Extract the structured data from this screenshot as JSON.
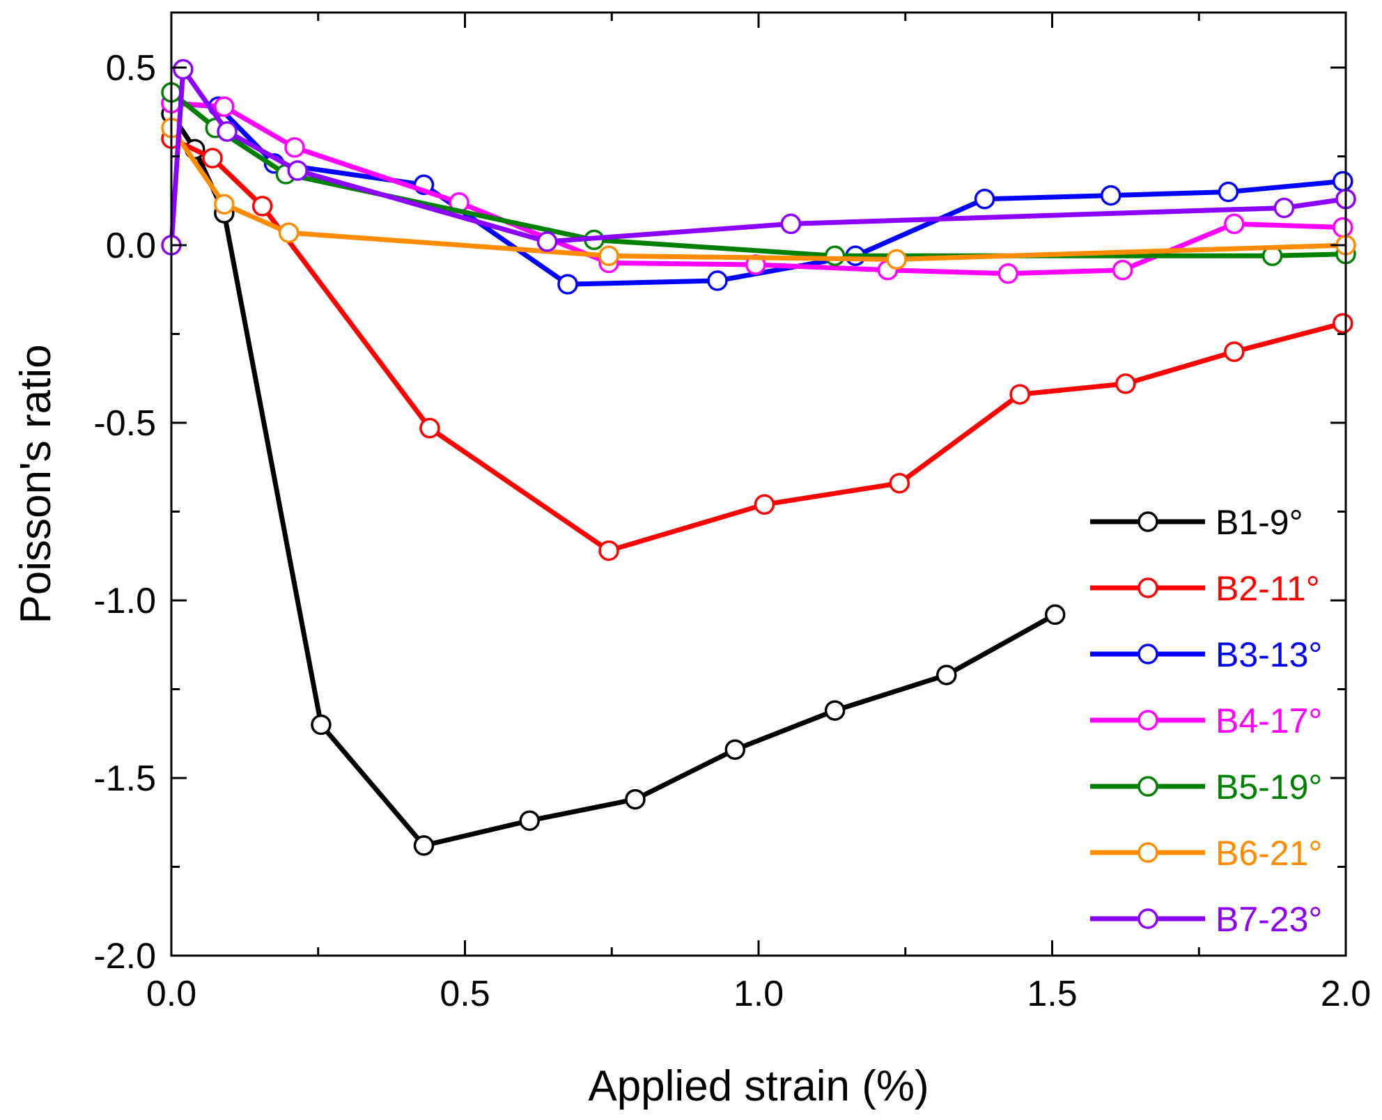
{
  "chart_data": {
    "type": "line",
    "title": "",
    "xlabel": "Applied strain (%)",
    "ylabel": "Poisson's ratio",
    "xlim": [
      0.0,
      2.0
    ],
    "ylim": [
      -2.0,
      0.65
    ],
    "x_ticks": [
      0.0,
      0.5,
      1.0,
      1.5,
      2.0
    ],
    "x_tick_labels": [
      "0.0",
      "0.5",
      "1.0",
      "1.5",
      "2.0"
    ],
    "y_ticks": [
      0.5,
      0.0,
      -0.5,
      -1.0,
      -1.5,
      -2.0
    ],
    "y_tick_labels": [
      "0.5",
      "0.0",
      "-0.5",
      "-1.0",
      "-1.5",
      "-2.0"
    ],
    "grid": false,
    "legend_position": "bottom-right",
    "series": [
      {
        "name": "B1-9°",
        "color": "#000000",
        "points": [
          [
            0.0,
            0.37
          ],
          [
            0.04,
            0.27
          ],
          [
            0.09,
            0.09
          ],
          [
            0.255,
            -1.35
          ],
          [
            0.43,
            -1.69
          ],
          [
            0.61,
            -1.62
          ],
          [
            0.79,
            -1.56
          ],
          [
            0.96,
            -1.42
          ],
          [
            1.13,
            -1.31
          ],
          [
            1.32,
            -1.21
          ],
          [
            1.505,
            -1.04
          ]
        ]
      },
      {
        "name": "B2-11°",
        "color": "#ff0000",
        "points": [
          [
            0.0,
            0.3
          ],
          [
            0.07,
            0.245
          ],
          [
            0.155,
            0.11
          ],
          [
            0.44,
            -0.515
          ],
          [
            0.745,
            -0.86
          ],
          [
            1.01,
            -0.73
          ],
          [
            1.24,
            -0.67
          ],
          [
            1.445,
            -0.42
          ],
          [
            1.625,
            -0.39
          ],
          [
            1.81,
            -0.3
          ],
          [
            1.995,
            -0.22
          ]
        ]
      },
      {
        "name": "B3-13°",
        "color": "#0000ff",
        "points": [
          [
            0.0,
            0.4
          ],
          [
            0.08,
            0.39
          ],
          [
            0.175,
            0.23
          ],
          [
            0.43,
            0.17
          ],
          [
            0.675,
            -0.11
          ],
          [
            0.93,
            -0.1
          ],
          [
            1.165,
            -0.03
          ],
          [
            1.385,
            0.13
          ],
          [
            1.6,
            0.14
          ],
          [
            1.8,
            0.15
          ],
          [
            1.995,
            0.18
          ]
        ]
      },
      {
        "name": "B4-17°",
        "color": "#ff00ff",
        "points": [
          [
            0.0,
            0.4
          ],
          [
            0.09,
            0.39
          ],
          [
            0.21,
            0.275
          ],
          [
            0.49,
            0.12
          ],
          [
            0.745,
            -0.05
          ],
          [
            0.995,
            -0.055
          ],
          [
            1.22,
            -0.07
          ],
          [
            1.425,
            -0.08
          ],
          [
            1.62,
            -0.07
          ],
          [
            1.81,
            0.06
          ],
          [
            1.995,
            0.05
          ]
        ]
      },
      {
        "name": "B5-19°",
        "color": "#008000",
        "points": [
          [
            0.0,
            0.43
          ],
          [
            0.075,
            0.33
          ],
          [
            0.195,
            0.2
          ],
          [
            0.72,
            0.015
          ],
          [
            1.13,
            -0.03
          ],
          [
            1.875,
            -0.03
          ],
          [
            2.0,
            -0.025
          ]
        ]
      },
      {
        "name": "B6-21°",
        "color": "#ff8c00",
        "points": [
          [
            0.0,
            0.33
          ],
          [
            0.09,
            0.115
          ],
          [
            0.2,
            0.035
          ],
          [
            0.745,
            -0.03
          ],
          [
            1.235,
            -0.04
          ],
          [
            2.0,
            0.0
          ]
        ]
      },
      {
        "name": "B7-23°",
        "color": "#8b00ff",
        "points": [
          [
            0.0,
            0.0
          ],
          [
            0.02,
            0.495
          ],
          [
            0.095,
            0.32
          ],
          [
            0.215,
            0.21
          ],
          [
            0.64,
            0.01
          ],
          [
            1.055,
            0.06
          ],
          [
            1.895,
            0.105
          ],
          [
            2.0,
            0.13
          ]
        ]
      }
    ]
  }
}
